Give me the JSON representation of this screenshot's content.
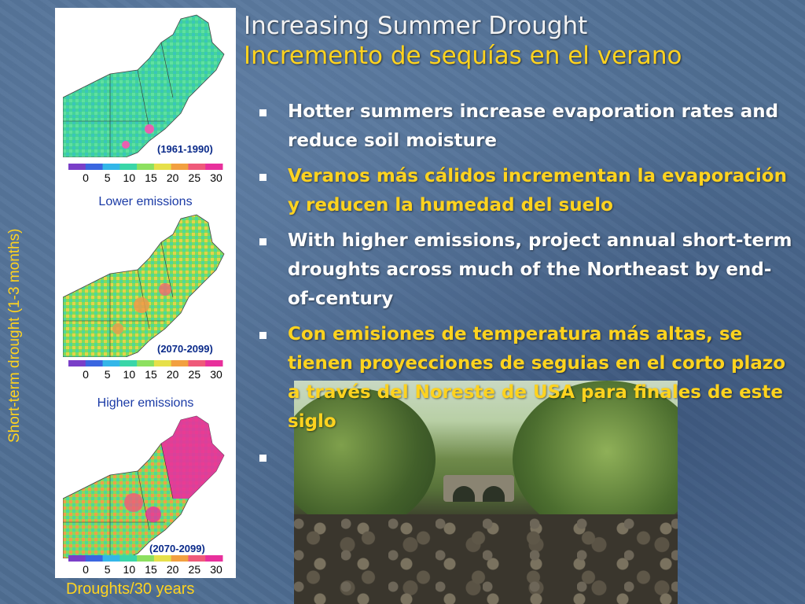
{
  "slide": {
    "title_en": "Increasing Summer Drought",
    "title_es": "Incremento de sequías en el verano",
    "bullets": [
      {
        "lang": "en",
        "text": "Hotter summers increase evaporation rates and reduce soil moisture"
      },
      {
        "lang": "es",
        "text": "Veranos más cálidos incrementan la evaporación y reducen la humedad del suelo"
      },
      {
        "lang": "en",
        "text": "With higher emissions, project annual short-term droughts across much of the Northeast by end-of-century"
      },
      {
        "lang": "es",
        "text": "Con emisiones de temperatura más altas, se tienen proyecciones de seguias en el corto plazo a través del Noreste de USA para finales de este siglo"
      },
      {
        "lang": "en",
        "text": ""
      }
    ]
  },
  "figure": {
    "y_axis_label": "Short-term drought (1-3 months)",
    "x_axis_label": "Droughts/30 years",
    "maps": [
      {
        "period": "(1961-1990)",
        "scenario": ""
      },
      {
        "period": "(2070-2099)",
        "scenario": "Lower emissions"
      },
      {
        "period": "(2070-2099)",
        "scenario": "Higher emissions"
      }
    ],
    "colorbar_ticks": [
      "0",
      "5",
      "10",
      "15",
      "20",
      "25",
      "30"
    ],
    "colorbar_colors": [
      "#7a3fc8",
      "#3a66e0",
      "#33b6e8",
      "#3ad6a8",
      "#8de060",
      "#e6e04a",
      "#f2a040",
      "#ef5a7a",
      "#e8309c"
    ]
  },
  "colors": {
    "background": "#4f6e93",
    "title_en": "#f2f2f2",
    "accent_yellow": "#ffd31f"
  }
}
